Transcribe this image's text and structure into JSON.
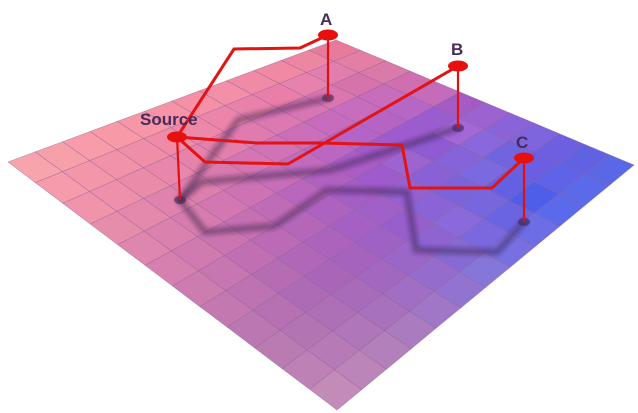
{
  "diagram": {
    "grid": {
      "rows": 12,
      "cols": 12,
      "tile_colors": [
        [
          "#e87b9b",
          "#e37ea5",
          "#d97aa8",
          "#cf6fb0",
          "#c46bb9",
          "#a45cc4",
          "#9c63d0",
          "#8b63d8",
          "#7f65dd",
          "#6d60e0",
          "#6062e2",
          "#5a67e6"
        ],
        [
          "#ed86a3",
          "#e27eae",
          "#d673aa",
          "#c86cbc",
          "#b666c4",
          "#9b5ccf",
          "#a467d6",
          "#8a68dc",
          "#7064df",
          "#6a5fe3",
          "#5f63e7",
          "#5b6ae9"
        ],
        [
          "#f08aa4",
          "#e682ad",
          "#dc76b0",
          "#c86cbe",
          "#b564c4",
          "#9d5bcf",
          "#8f5ad2",
          "#8563d9",
          "#7b6adf",
          "#6460e4",
          "#4e5ee8",
          "#5a6aea"
        ],
        [
          "#f08aa6",
          "#e97ea8",
          "#d876b3",
          "#c96bbc",
          "#b463c7",
          "#a35ac7",
          "#9d63cf",
          "#8a60d6",
          "#7a63db",
          "#7667df",
          "#6a64e2",
          "#6d6ee6"
        ],
        [
          "#f38fa8",
          "#e982aa",
          "#dc78b2",
          "#cc6fb8",
          "#ba66c2",
          "#a95dc5",
          "#9d5bcb",
          "#9660cf",
          "#8a63d7",
          "#8a6adb",
          "#7b68de",
          "#7870e1"
        ],
        [
          "#f590a7",
          "#ec85aa",
          "#df7baf",
          "#cf72b6",
          "#c06bbc",
          "#b061bf",
          "#a45ec6",
          "#9f61c8",
          "#975fcc",
          "#8f64d1",
          "#876bd4",
          "#8576d9"
        ],
        [
          "#f693a6",
          "#ee88a8",
          "#e27fac",
          "#d576b2",
          "#c76eb8",
          "#b967bc",
          "#ad62bf",
          "#a460c2",
          "#9e62c5",
          "#9a66c7",
          "#956bcb",
          "#9273cf"
        ],
        [
          "#f696a6",
          "#f08ba7",
          "#e583aa",
          "#d97aae",
          "#cd72b2",
          "#c06bb6",
          "#b466b9",
          "#ab63bb",
          "#a563bd",
          "#a268bf",
          "#a06ec2",
          "#a077c6"
        ],
        [
          "#f799a7",
          "#f18ea7",
          "#e887aa",
          "#dd7fad",
          "#d277b0",
          "#c670b3",
          "#bb6bb5",
          "#b167b7",
          "#a966b8",
          "#a76bba",
          "#a871bc",
          "#ab7bc0"
        ],
        [
          "#f79ca8",
          "#f292a8",
          "#eb8baa",
          "#e083ac",
          "#d67cae",
          "#cb75b0",
          "#c070b2",
          "#b66cb3",
          "#ae6bb5",
          "#ad6fb6",
          "#af76b9",
          "#b380bc"
        ],
        [
          "#f7a0aa",
          "#f396a9",
          "#ee8fab",
          "#e488ac",
          "#da81ad",
          "#d07aaf",
          "#c676b0",
          "#bd72b1",
          "#b571b2",
          "#b374b4",
          "#b67bb7",
          "#bc85ba"
        ],
        [
          "#f7a4ac",
          "#f59bab",
          "#f094ab",
          "#e78dac",
          "#de86ad",
          "#d580ae",
          "#cc7caf",
          "#c378b0",
          "#bb77b1",
          "#ba7ab2",
          "#bd81b5",
          "#c38bb8"
        ]
      ]
    },
    "nodes": [
      {
        "id": "A",
        "label": "A"
      },
      {
        "id": "B",
        "label": "B"
      },
      {
        "id": "Source",
        "label": "Source"
      },
      {
        "id": "C",
        "label": "C"
      }
    ]
  }
}
